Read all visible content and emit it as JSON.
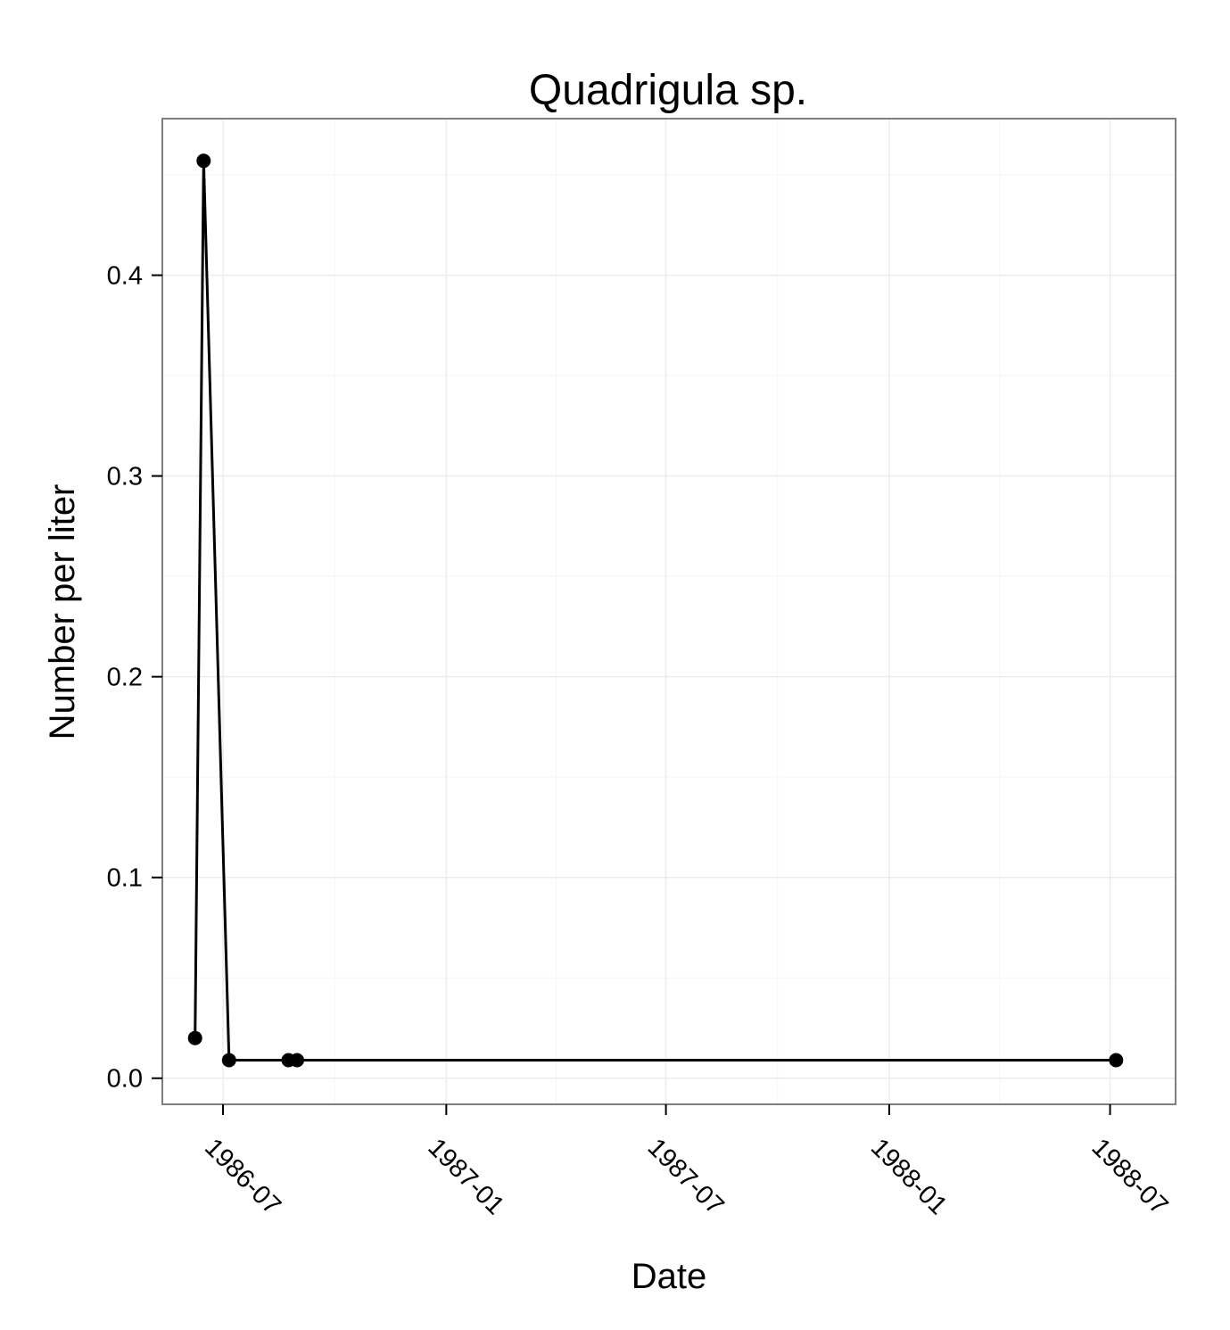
{
  "chart_data": {
    "type": "line",
    "title": "Quadrigula sp.",
    "xlabel": "Date",
    "ylabel": "Number per liter",
    "x_ticks": [
      "1986-07",
      "1987-01",
      "1987-07",
      "1988-01",
      "1988-07"
    ],
    "y_ticks": [
      "0.0",
      "0.1",
      "0.2",
      "0.3",
      "0.4"
    ],
    "xlim": [
      "1986-05-12",
      "1988-08-24"
    ],
    "ylim": [
      -0.013,
      0.478
    ],
    "grid": true,
    "legend": "none",
    "series": [
      {
        "color": "#000000",
        "points": [
          {
            "x": "1986-06-08",
            "y": 0.02
          },
          {
            "x": "1986-06-15",
            "y": 0.457
          },
          {
            "x": "1986-07-06",
            "y": 0.009
          },
          {
            "x": "1986-08-24",
            "y": 0.009
          },
          {
            "x": "1986-08-31",
            "y": 0.009
          },
          {
            "x": "1988-07-06",
            "y": 0.009
          }
        ]
      }
    ]
  }
}
